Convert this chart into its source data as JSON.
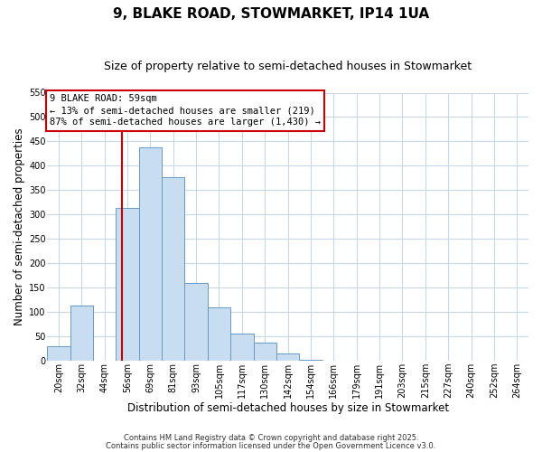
{
  "title": "9, BLAKE ROAD, STOWMARKET, IP14 1UA",
  "subtitle": "Size of property relative to semi-detached houses in Stowmarket",
  "xlabel": "Distribution of semi-detached houses by size in Stowmarket",
  "ylabel": "Number of semi-detached properties",
  "bin_labels": [
    "20sqm",
    "32sqm",
    "44sqm",
    "56sqm",
    "69sqm",
    "81sqm",
    "93sqm",
    "105sqm",
    "117sqm",
    "130sqm",
    "142sqm",
    "154sqm",
    "166sqm",
    "179sqm",
    "191sqm",
    "203sqm",
    "215sqm",
    "227sqm",
    "240sqm",
    "252sqm",
    "264sqm"
  ],
  "bar_values": [
    30,
    113,
    0,
    313,
    438,
    376,
    160,
    111,
    57,
    38,
    15,
    2,
    0,
    0,
    0,
    0,
    0,
    0,
    0,
    0,
    0
  ],
  "bar_color": "#c8ddf0",
  "bar_edge_color": "#6699cc",
  "property_line_x": 3.27,
  "property_line_color": "#cc0000",
  "annotation_title": "9 BLAKE ROAD: 59sqm",
  "annotation_line1": "← 13% of semi-detached houses are smaller (219)",
  "annotation_line2": "87% of semi-detached houses are larger (1,430) →",
  "annotation_box_color": "#cc0000",
  "ylim": [
    0,
    550
  ],
  "yticks": [
    0,
    50,
    100,
    150,
    200,
    250,
    300,
    350,
    400,
    450,
    500,
    550
  ],
  "footer1": "Contains HM Land Registry data © Crown copyright and database right 2025.",
  "footer2": "Contains public sector information licensed under the Open Government Licence v3.0.",
  "bg_color": "#ffffff",
  "grid_color": "#c8d8e8",
  "title_fontsize": 11,
  "subtitle_fontsize": 9,
  "axis_label_fontsize": 8.5,
  "tick_fontsize": 7,
  "footer_fontsize": 6,
  "annotation_fontsize": 7.5
}
